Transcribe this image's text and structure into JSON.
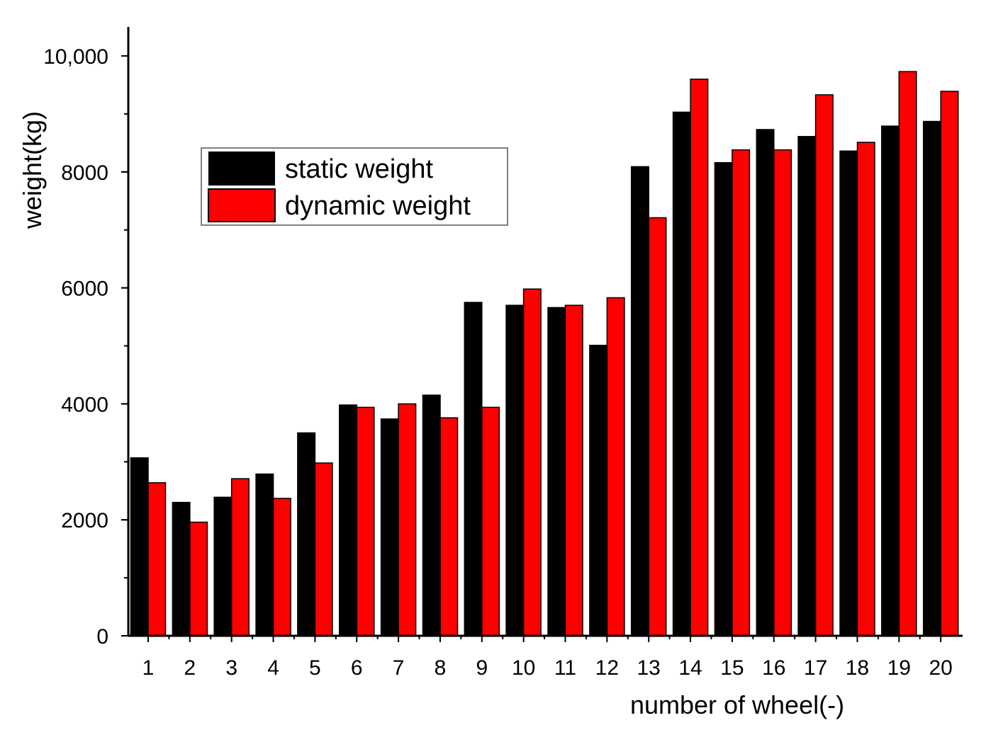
{
  "chart_data": {
    "type": "bar",
    "xlabel": "number of wheel(-)",
    "ylabel": "weight(kg)",
    "ylim": [
      0,
      10500
    ],
    "y_ticks": [
      {
        "value": 0,
        "label": "0"
      },
      {
        "value": 2000,
        "label": "2000"
      },
      {
        "value": 4000,
        "label": "4000"
      },
      {
        "value": 6000,
        "label": "6000"
      },
      {
        "value": 8000,
        "label": "8000"
      },
      {
        "value": 10000,
        "label": "10,000"
      }
    ],
    "categories": [
      "1",
      "2",
      "3",
      "4",
      "5",
      "6",
      "7",
      "8",
      "9",
      "10",
      "11",
      "12",
      "13",
      "14",
      "15",
      "16",
      "17",
      "18",
      "19",
      "20"
    ],
    "series": [
      {
        "name": "static weight",
        "color": "#000000",
        "values": [
          3070,
          2300,
          2390,
          2790,
          3500,
          3980,
          3740,
          4150,
          5750,
          5700,
          5660,
          5010,
          8090,
          9030,
          8160,
          8730,
          8610,
          8360,
          8790,
          8870
        ]
      },
      {
        "name": "dynamic weight",
        "color": "#ff0000",
        "values": [
          2640,
          1960,
          2710,
          2370,
          2980,
          3940,
          4000,
          3760,
          3940,
          5980,
          5700,
          5830,
          7210,
          9600,
          8380,
          8380,
          9330,
          8510,
          9730,
          9390
        ]
      }
    ],
    "legend_position": "top-left",
    "grid": false
  }
}
